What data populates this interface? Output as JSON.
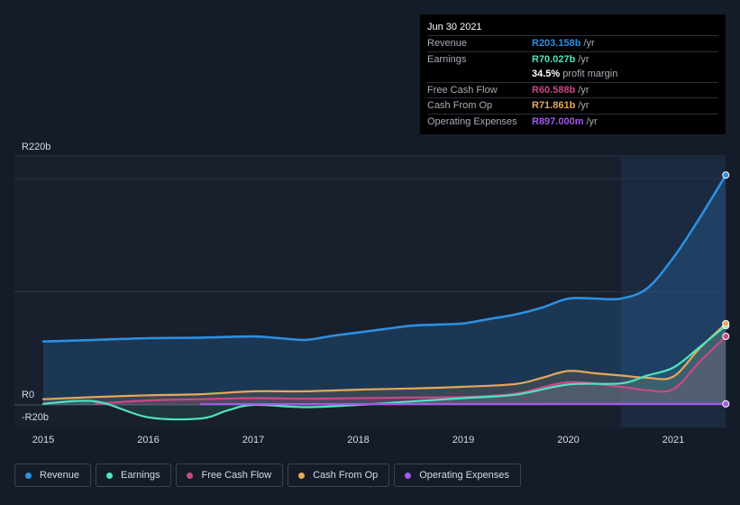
{
  "chart_data": {
    "type": "area",
    "x_labels": [
      "2015",
      "2016",
      "2017",
      "2018",
      "2019",
      "2020",
      "2021"
    ],
    "y_tick_labels": [
      "R220b",
      "R0",
      "-R20b"
    ],
    "ylim": [
      -20,
      220
    ],
    "grid": true,
    "legend_position": "bottom-left",
    "forecast_region_start": 2020.5,
    "series": [
      {
        "name": "Revenue",
        "color": "#2d8fe0",
        "points": [
          [
            2015.0,
            56
          ],
          [
            2015.5,
            57.5
          ],
          [
            2016.0,
            59
          ],
          [
            2016.5,
            59.5
          ],
          [
            2017.0,
            60.5
          ],
          [
            2017.25,
            59
          ],
          [
            2017.5,
            57.5
          ],
          [
            2017.75,
            61
          ],
          [
            2018.0,
            64
          ],
          [
            2018.25,
            67
          ],
          [
            2018.5,
            70
          ],
          [
            2018.75,
            71
          ],
          [
            2019.0,
            72
          ],
          [
            2019.25,
            76
          ],
          [
            2019.5,
            80
          ],
          [
            2019.75,
            86
          ],
          [
            2020.0,
            94
          ],
          [
            2020.25,
            94
          ],
          [
            2020.5,
            94
          ],
          [
            2020.75,
            103
          ],
          [
            2021.0,
            130
          ],
          [
            2021.25,
            165
          ],
          [
            2021.5,
            203.158
          ]
        ]
      },
      {
        "name": "Earnings",
        "color": "#4fe3c1",
        "points": [
          [
            2015.0,
            1
          ],
          [
            2015.5,
            3
          ],
          [
            2016.0,
            -11
          ],
          [
            2016.5,
            -12
          ],
          [
            2016.75,
            -5
          ],
          [
            2017.0,
            0
          ],
          [
            2017.5,
            -2
          ],
          [
            2018.0,
            0
          ],
          [
            2018.5,
            3
          ],
          [
            2019.0,
            6
          ],
          [
            2019.5,
            9
          ],
          [
            2020.0,
            18
          ],
          [
            2020.5,
            19
          ],
          [
            2020.75,
            26
          ],
          [
            2021.0,
            33
          ],
          [
            2021.25,
            51
          ],
          [
            2021.5,
            70.027
          ]
        ]
      },
      {
        "name": "Free Cash Flow",
        "color": "#c84a85",
        "points": [
          [
            2015.5,
            1
          ],
          [
            2016.0,
            4
          ],
          [
            2016.5,
            5
          ],
          [
            2017.0,
            6
          ],
          [
            2017.5,
            5.5
          ],
          [
            2018.0,
            6
          ],
          [
            2018.5,
            6.5
          ],
          [
            2019.0,
            7
          ],
          [
            2019.5,
            10
          ],
          [
            2020.0,
            20
          ],
          [
            2020.5,
            16
          ],
          [
            2020.75,
            13
          ],
          [
            2021.0,
            14
          ],
          [
            2021.25,
            38
          ],
          [
            2021.5,
            60.588
          ]
        ]
      },
      {
        "name": "Cash From Op",
        "color": "#e6a85a",
        "points": [
          [
            2015.0,
            5
          ],
          [
            2015.5,
            7
          ],
          [
            2016.0,
            8.5
          ],
          [
            2016.5,
            9.5
          ],
          [
            2017.0,
            12
          ],
          [
            2017.5,
            12
          ],
          [
            2018.0,
            13.5
          ],
          [
            2018.5,
            14.5
          ],
          [
            2019.0,
            16
          ],
          [
            2019.5,
            18.5
          ],
          [
            2019.75,
            24
          ],
          [
            2020.0,
            30
          ],
          [
            2020.25,
            28
          ],
          [
            2020.5,
            26
          ],
          [
            2020.75,
            24
          ],
          [
            2021.0,
            25
          ],
          [
            2021.25,
            50
          ],
          [
            2021.5,
            71.861
          ]
        ]
      },
      {
        "name": "Operating Expenses",
        "color": "#a259f0",
        "points": [
          [
            2016.5,
            0.6
          ],
          [
            2017.0,
            0.7
          ],
          [
            2018.0,
            0.75
          ],
          [
            2019.0,
            0.8
          ],
          [
            2020.0,
            0.85
          ],
          [
            2021.0,
            0.88
          ],
          [
            2021.5,
            0.897
          ]
        ]
      }
    ]
  },
  "tooltip": {
    "date": "Jun 30 2021",
    "rows": [
      {
        "label": "Revenue",
        "value": "R203.158b",
        "unit": "/yr",
        "color": "#2d8fe0"
      },
      {
        "label": "Earnings",
        "value": "R70.027b",
        "unit": "/yr",
        "color": "#4fe3c1"
      },
      {
        "label": "",
        "value": "34.5%",
        "unit": "profit margin",
        "color": "#ffffff"
      },
      {
        "label": "Free Cash Flow",
        "value": "R60.588b",
        "unit": "/yr",
        "color": "#c84a85"
      },
      {
        "label": "Cash From Op",
        "value": "R71.861b",
        "unit": "/yr",
        "color": "#e6a85a"
      },
      {
        "label": "Operating Expenses",
        "value": "R897.000m",
        "unit": "/yr",
        "color": "#a259f0"
      }
    ]
  },
  "legend": [
    {
      "label": "Revenue",
      "color": "#2d8fe0"
    },
    {
      "label": "Earnings",
      "color": "#4fe3c1"
    },
    {
      "label": "Free Cash Flow",
      "color": "#c84a85"
    },
    {
      "label": "Cash From Op",
      "color": "#e6a85a"
    },
    {
      "label": "Operating Expenses",
      "color": "#a259f0"
    }
  ]
}
